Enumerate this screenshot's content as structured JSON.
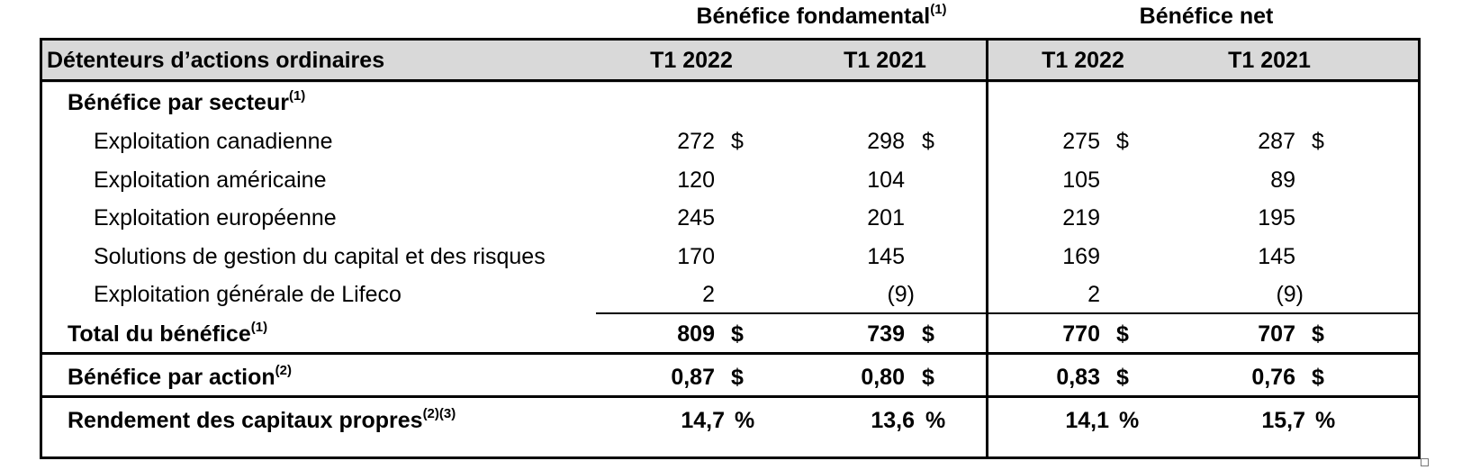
{
  "groups": {
    "core": {
      "label": "Bénéfice fondamental",
      "note": "(1)"
    },
    "net": {
      "label": "Bénéfice net"
    }
  },
  "header": {
    "row_label": "Détenteurs d’actions ordinaires",
    "columns": [
      "T1 2022",
      "T1 2021",
      "T1 2022",
      "T1 2021"
    ]
  },
  "section": {
    "label": "Bénéfice par secteur",
    "note": "(1)"
  },
  "rows": [
    {
      "label": "Exploitation canadienne",
      "values": [
        "272",
        "298",
        "275",
        "287"
      ],
      "unit": "$"
    },
    {
      "label": "Exploitation américaine",
      "values": [
        "120",
        "104",
        "105",
        "89"
      ]
    },
    {
      "label": "Exploitation européenne",
      "values": [
        "245",
        "201",
        "219",
        "195"
      ]
    },
    {
      "label": "Solutions de gestion du capital et des risques",
      "values": [
        "170",
        "145",
        "169",
        "145"
      ]
    },
    {
      "label": "Exploitation générale de Lifeco",
      "values": [
        "2",
        "(9)",
        "2",
        "(9)"
      ]
    }
  ],
  "total": {
    "label": "Total du bénéfice",
    "note": "(1)",
    "values": [
      "809",
      "739",
      "770",
      "707"
    ],
    "unit": "$"
  },
  "eps": {
    "label": "Bénéfice par action",
    "note": "(2)",
    "values": [
      "0,87",
      "0,80",
      "0,83",
      "0,76"
    ],
    "unit": "$"
  },
  "roe": {
    "label": "Rendement des capitaux propres",
    "note": "(2)(3)",
    "values": [
      "14,7",
      "13,6",
      "14,1",
      "15,7"
    ],
    "unit": "%"
  }
}
